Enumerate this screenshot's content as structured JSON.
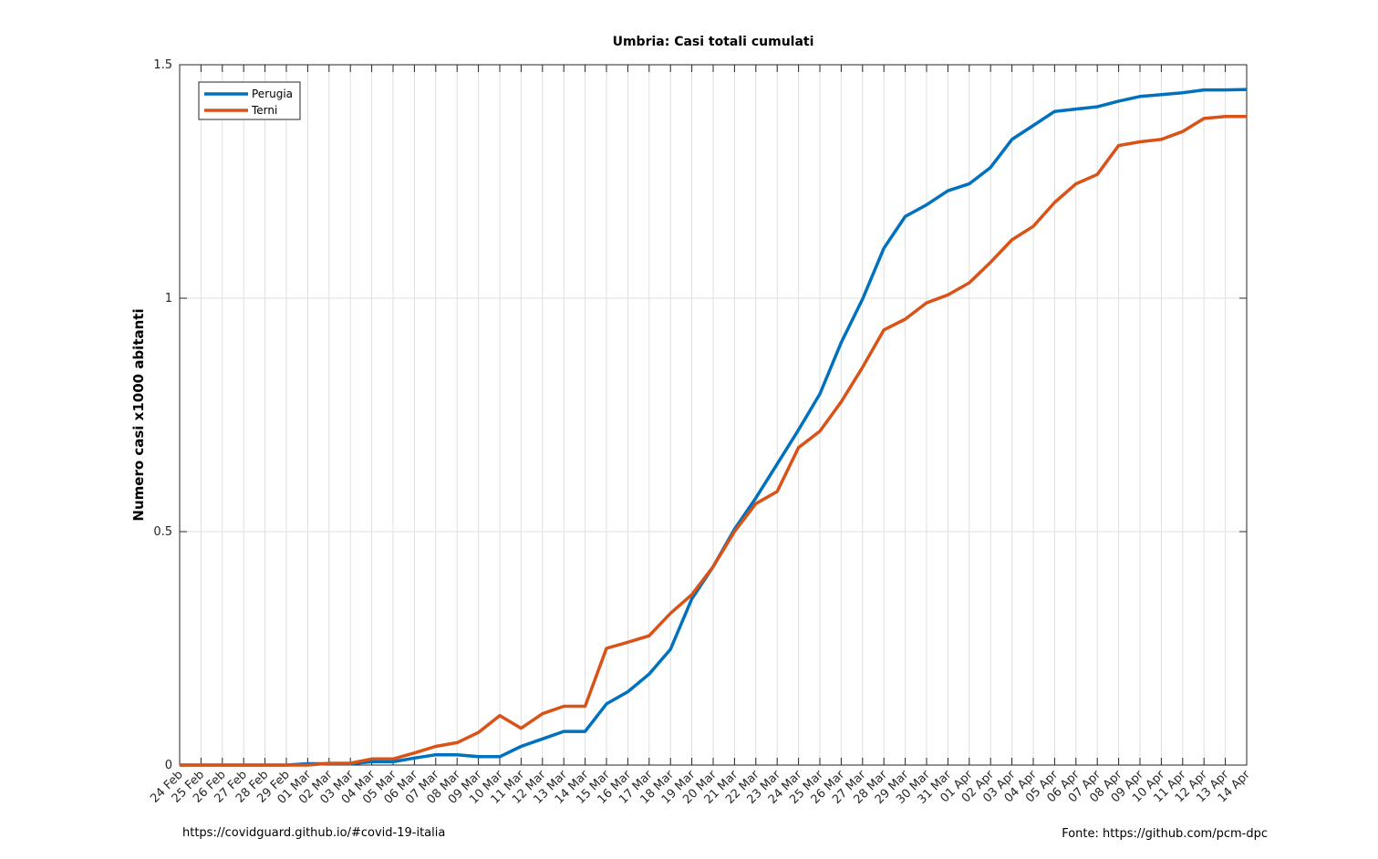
{
  "footer": {
    "source_left": "https://covidguard.github.io/#covid-19-italia",
    "source_right": "Fonte: https://github.com/pcm-dpc"
  },
  "chart_data": {
    "type": "line",
    "title": "Umbria: Casi totali cumulati",
    "xlabel": "",
    "ylabel": "Numero casi x1000 abitanti",
    "ylim": [
      0,
      1.5
    ],
    "yticks": [
      0,
      0.5,
      1,
      1.5
    ],
    "ytick_labels": [
      "0",
      "0.5",
      "1",
      "1.5"
    ],
    "grid": true,
    "legend_position": "top-left",
    "categories": [
      "24 Feb",
      "25 Feb",
      "26 Feb",
      "27 Feb",
      "28 Feb",
      "29 Feb",
      "01 Mar",
      "02 Mar",
      "03 Mar",
      "04 Mar",
      "05 Mar",
      "06 Mar",
      "07 Mar",
      "08 Mar",
      "09 Mar",
      "10 Mar",
      "11 Mar",
      "12 Mar",
      "13 Mar",
      "14 Mar",
      "15 Mar",
      "16 Mar",
      "17 Mar",
      "18 Mar",
      "19 Mar",
      "20 Mar",
      "21 Mar",
      "22 Mar",
      "23 Mar",
      "24 Mar",
      "25 Mar",
      "26 Mar",
      "27 Mar",
      "28 Mar",
      "29 Mar",
      "30 Mar",
      "31 Mar",
      "01 Apr",
      "02 Apr",
      "03 Apr",
      "04 Apr",
      "05 Apr",
      "06 Apr",
      "07 Apr",
      "08 Apr",
      "09 Apr",
      "10 Apr",
      "11 Apr",
      "12 Apr",
      "13 Apr",
      "14 Apr"
    ],
    "series": [
      {
        "name": "Perugia",
        "color": "#0072BD",
        "values": [
          0,
          0,
          0,
          0,
          0,
          0,
          0.003,
          0.003,
          0.003,
          0.007,
          0.007,
          0.015,
          0.022,
          0.022,
          0.018,
          0.018,
          0.04,
          0.056,
          0.072,
          0.072,
          0.131,
          0.157,
          0.195,
          0.248,
          0.356,
          0.425,
          0.505,
          0.572,
          0.645,
          0.718,
          0.795,
          0.905,
          0.998,
          1.107,
          1.175,
          1.2,
          1.23,
          1.245,
          1.28,
          1.34,
          1.37,
          1.4,
          1.405,
          1.41,
          1.422,
          1.432,
          1.436,
          1.44,
          1.446,
          1.446,
          1.447
        ]
      },
      {
        "name": "Terni",
        "color": "#D95319",
        "values": [
          0,
          0,
          0,
          0,
          0,
          0,
          0,
          0.004,
          0.004,
          0.013,
          0.013,
          0.026,
          0.04,
          0.048,
          0.07,
          0.106,
          0.079,
          0.11,
          0.126,
          0.126,
          0.25,
          0.263,
          0.277,
          0.325,
          0.365,
          0.425,
          0.5,
          0.56,
          0.586,
          0.68,
          0.715,
          0.778,
          0.852,
          0.932,
          0.955,
          0.99,
          1.007,
          1.033,
          1.077,
          1.125,
          1.154,
          1.205,
          1.245,
          1.265,
          1.327,
          1.335,
          1.34,
          1.357,
          1.385,
          1.389,
          1.389
        ]
      }
    ]
  }
}
